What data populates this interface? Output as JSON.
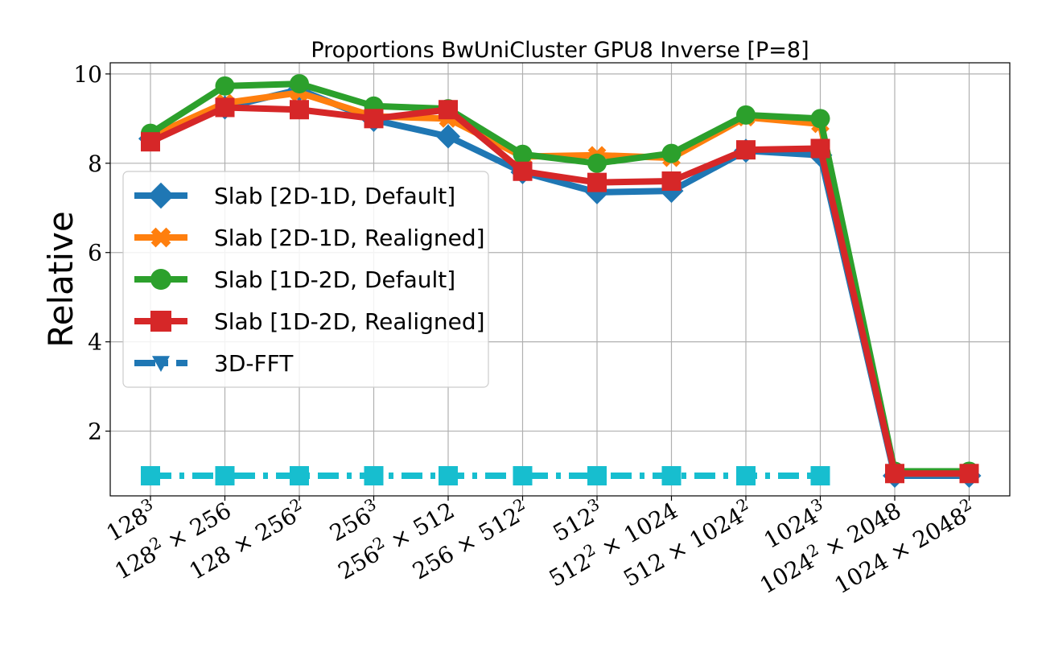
{
  "chart_data": {
    "type": "line",
    "title": "Proportions BwUniCluster GPU8 Inverse [P=8]",
    "xlabel": "",
    "ylabel": "Relative",
    "ylim": [
      0.55,
      10.25
    ],
    "yticks": [
      {
        "value": 2,
        "label": "2"
      },
      {
        "value": 4,
        "label": "4"
      },
      {
        "value": 6,
        "label": "6"
      },
      {
        "value": 8,
        "label": "8"
      },
      {
        "value": 10,
        "label": "10"
      }
    ],
    "categories": [
      {
        "base": "128",
        "exp": "3",
        "tail": ""
      },
      {
        "base": "128",
        "exp": "2",
        "tail": " × 256"
      },
      {
        "base": "128 × 256",
        "exp": "2",
        "tail": ""
      },
      {
        "base": "256",
        "exp": "3",
        "tail": ""
      },
      {
        "base": "256",
        "exp": "2",
        "tail": " × 512"
      },
      {
        "base": "256 × 512",
        "exp": "2",
        "tail": ""
      },
      {
        "base": "512",
        "exp": "3",
        "tail": ""
      },
      {
        "base": "512",
        "exp": "2",
        "tail": " × 1024"
      },
      {
        "base": "512 × 1024",
        "exp": "2",
        "tail": ""
      },
      {
        "base": "1024",
        "exp": "3",
        "tail": ""
      },
      {
        "base": "1024",
        "exp": "2",
        "tail": " × 2048"
      },
      {
        "base": "1024 × 2048",
        "exp": "2",
        "tail": ""
      }
    ],
    "grid": true,
    "legend_position": "center-left",
    "series": [
      {
        "name": "Slab [2D-1D, Default]",
        "color": "#1f77b4",
        "marker": "diamond",
        "dash": "solid",
        "values": [
          8.55,
          9.25,
          9.65,
          8.97,
          8.6,
          7.8,
          7.35,
          7.38,
          8.28,
          8.18,
          1.0,
          1.0
        ]
      },
      {
        "name": "Slab [2D-1D, Realigned]",
        "color": "#ff7f0e",
        "marker": "x",
        "dash": "solid",
        "values": [
          8.6,
          9.35,
          9.58,
          9.05,
          9.0,
          8.15,
          8.18,
          8.12,
          9.03,
          8.88,
          1.05,
          1.05
        ]
      },
      {
        "name": "Slab [1D-2D, Default]",
        "color": "#2ca02c",
        "marker": "circle",
        "dash": "solid",
        "values": [
          8.67,
          9.73,
          9.78,
          9.28,
          9.22,
          8.2,
          8.0,
          8.22,
          9.08,
          9.0,
          1.1,
          1.1
        ]
      },
      {
        "name": "Slab [1D-2D, Realigned]",
        "color": "#d62728",
        "marker": "square",
        "dash": "solid",
        "values": [
          8.48,
          9.25,
          9.2,
          9.0,
          9.2,
          7.82,
          7.57,
          7.6,
          8.3,
          8.33,
          1.05,
          1.05
        ]
      },
      {
        "name": "3D-FFT",
        "color": "#1f77b4",
        "marker": "triangle-down",
        "dash": "dashdot",
        "values": [
          1.0,
          1.0,
          1.0,
          1.0,
          1.0,
          1.0,
          1.0,
          1.0,
          1.0,
          1.0,
          null,
          null
        ]
      },
      {
        "name": "",
        "color": "#17becf",
        "marker": "square",
        "dash": "dashdot",
        "values": [
          1.0,
          1.0,
          1.0,
          1.0,
          1.0,
          1.0,
          1.0,
          1.0,
          1.0,
          1.0,
          null,
          null
        ]
      }
    ]
  }
}
